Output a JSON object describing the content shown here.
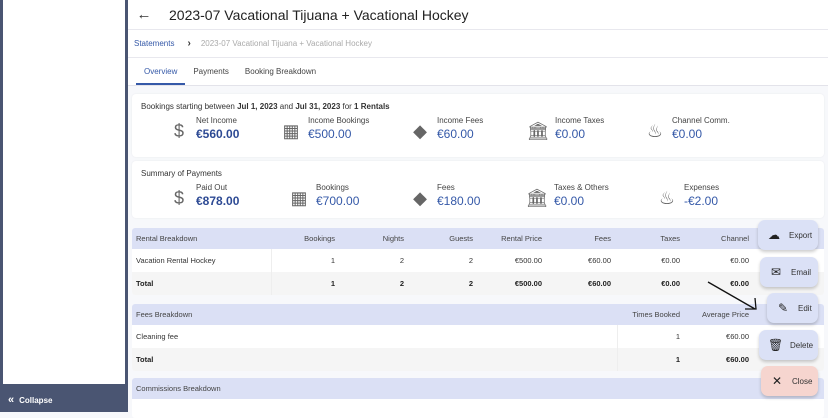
{
  "sidebar": {
    "collapse_label": "Collapse"
  },
  "header": {
    "title": "2023-07 Vacational Tijuana + Vacational Hockey"
  },
  "breadcrumb": {
    "root": "Statements",
    "current": "2023-07 Vacational Tijuana + Vacational Hockey"
  },
  "tabs": [
    {
      "label": "Overview",
      "active": true
    },
    {
      "label": "Payments"
    },
    {
      "label": "Booking Breakdown"
    }
  ],
  "summary": {
    "pre": "Bookings starting between ",
    "start": "Jul 1, 2023",
    "mid": " and ",
    "end": "Jul 31, 2023",
    "for": " for ",
    "rentals": "1 Rentals",
    "stats": [
      {
        "icon": "dollar-icon",
        "label": "Net Income",
        "value": "€560.00"
      },
      {
        "icon": "building-icon",
        "label": "Income Bookings",
        "value": "€500.00"
      },
      {
        "icon": "tag-icon",
        "label": "Income Fees",
        "value": "€60.00"
      },
      {
        "icon": "bank-icon",
        "label": "Income Taxes",
        "value": "€0.00"
      },
      {
        "icon": "fire-icon",
        "label": "Channel Comm.",
        "value": "€0.00"
      }
    ]
  },
  "payments": {
    "title": "Summary of Payments",
    "stats": [
      {
        "icon": "dollar-icon",
        "label": "Paid Out",
        "value": "€878.00"
      },
      {
        "icon": "building-icon",
        "label": "Bookings",
        "value": "€700.00"
      },
      {
        "icon": "tag-icon",
        "label": "Fees",
        "value": "€180.00"
      },
      {
        "icon": "bank-icon",
        "label": "Taxes & Others",
        "value": "€0.00"
      },
      {
        "icon": "fire-icon",
        "label": "Expenses",
        "value": "-€2.00"
      }
    ]
  },
  "rental_breakdown": {
    "headers": [
      "Rental Breakdown",
      "Bookings",
      "Nights",
      "Guests",
      "Rental Price",
      "Fees",
      "Taxes",
      "Channel"
    ],
    "rows": [
      [
        "Vacation Rental Hockey",
        "1",
        "2",
        "2",
        "€500.00",
        "€60.00",
        "€0.00",
        "€0.00"
      ]
    ],
    "total": [
      "Total",
      "1",
      "2",
      "2",
      "€500.00",
      "€60.00",
      "€0.00",
      "€0.00"
    ]
  },
  "fees_breakdown": {
    "headers": [
      "Fees Breakdown",
      "Times Booked",
      "Average Price"
    ],
    "rows": [
      [
        "Cleaning fee",
        "1",
        "€60.00"
      ]
    ],
    "total": [
      "Total",
      "1",
      "€60.00"
    ]
  },
  "commissions_breakdown": {
    "headers": [
      "Commissions Breakdown"
    ]
  },
  "actions": {
    "export": "Export",
    "email": "Email",
    "edit": "Edit",
    "delete": "Delete",
    "close": "Close"
  },
  "colors": {
    "accent": "#3559a8",
    "table_header": "#dbe0f5",
    "fab": "#dbe1f6",
    "close_fab": "#f6d5cf"
  }
}
